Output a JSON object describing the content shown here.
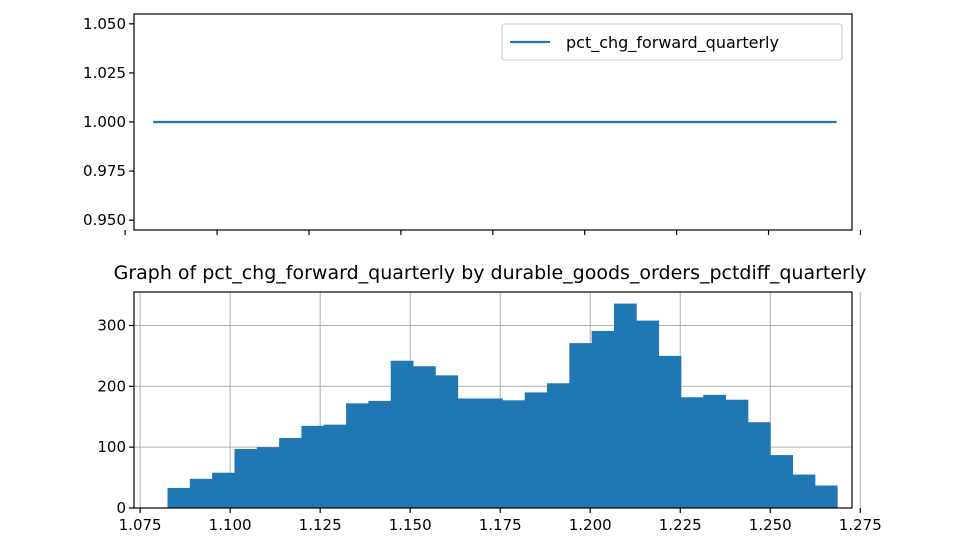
{
  "chart_data": [
    {
      "type": "line",
      "title": "",
      "xlabel": "",
      "ylabel": "",
      "xlim": [
        1.0774,
        1.2727
      ],
      "ylim": [
        0.945,
        1.055
      ],
      "yticks": [
        "1.050",
        "1.025",
        "1.000",
        "0.975",
        "0.950"
      ],
      "ytick_values": [
        1.05,
        1.025,
        1.0,
        0.975,
        0.95
      ],
      "xticks_visible": false,
      "grid": false,
      "legend": {
        "position": "top-right",
        "entries": [
          "pct_chg_forward_quarterly"
        ]
      },
      "series": [
        {
          "name": "pct_chg_forward_quarterly",
          "color": "#1f77b4",
          "x": [
            1.0826,
            1.2685
          ],
          "y": [
            1.0,
            1.0
          ]
        }
      ]
    },
    {
      "type": "bar",
      "subtype": "histogram",
      "title": "Graph of pct_chg_forward_quarterly by durable_goods_orders_pctdiff_quarterly",
      "xlabel": "",
      "ylabel": "",
      "xlim": [
        1.0733,
        1.2727
      ],
      "ylim": [
        0,
        355
      ],
      "xticks": [
        "1.075",
        "1.100",
        "1.125",
        "1.150",
        "1.175",
        "1.200",
        "1.225",
        "1.250",
        "1.275"
      ],
      "xtick_values": [
        1.075,
        1.1,
        1.125,
        1.15,
        1.175,
        1.2,
        1.225,
        1.25,
        1.275
      ],
      "yticks": [
        "0",
        "100",
        "200",
        "300"
      ],
      "ytick_values": [
        0,
        100,
        200,
        300
      ],
      "grid": true,
      "color": "#1f77b4",
      "bin_start": 1.0826,
      "bin_width": 0.0062,
      "values": [
        33,
        48,
        58,
        97,
        100,
        115,
        135,
        137,
        172,
        176,
        242,
        233,
        218,
        180,
        180,
        177,
        190,
        205,
        271,
        291,
        336,
        308,
        250,
        182,
        186,
        178,
        141,
        87,
        55,
        37
      ]
    }
  ]
}
